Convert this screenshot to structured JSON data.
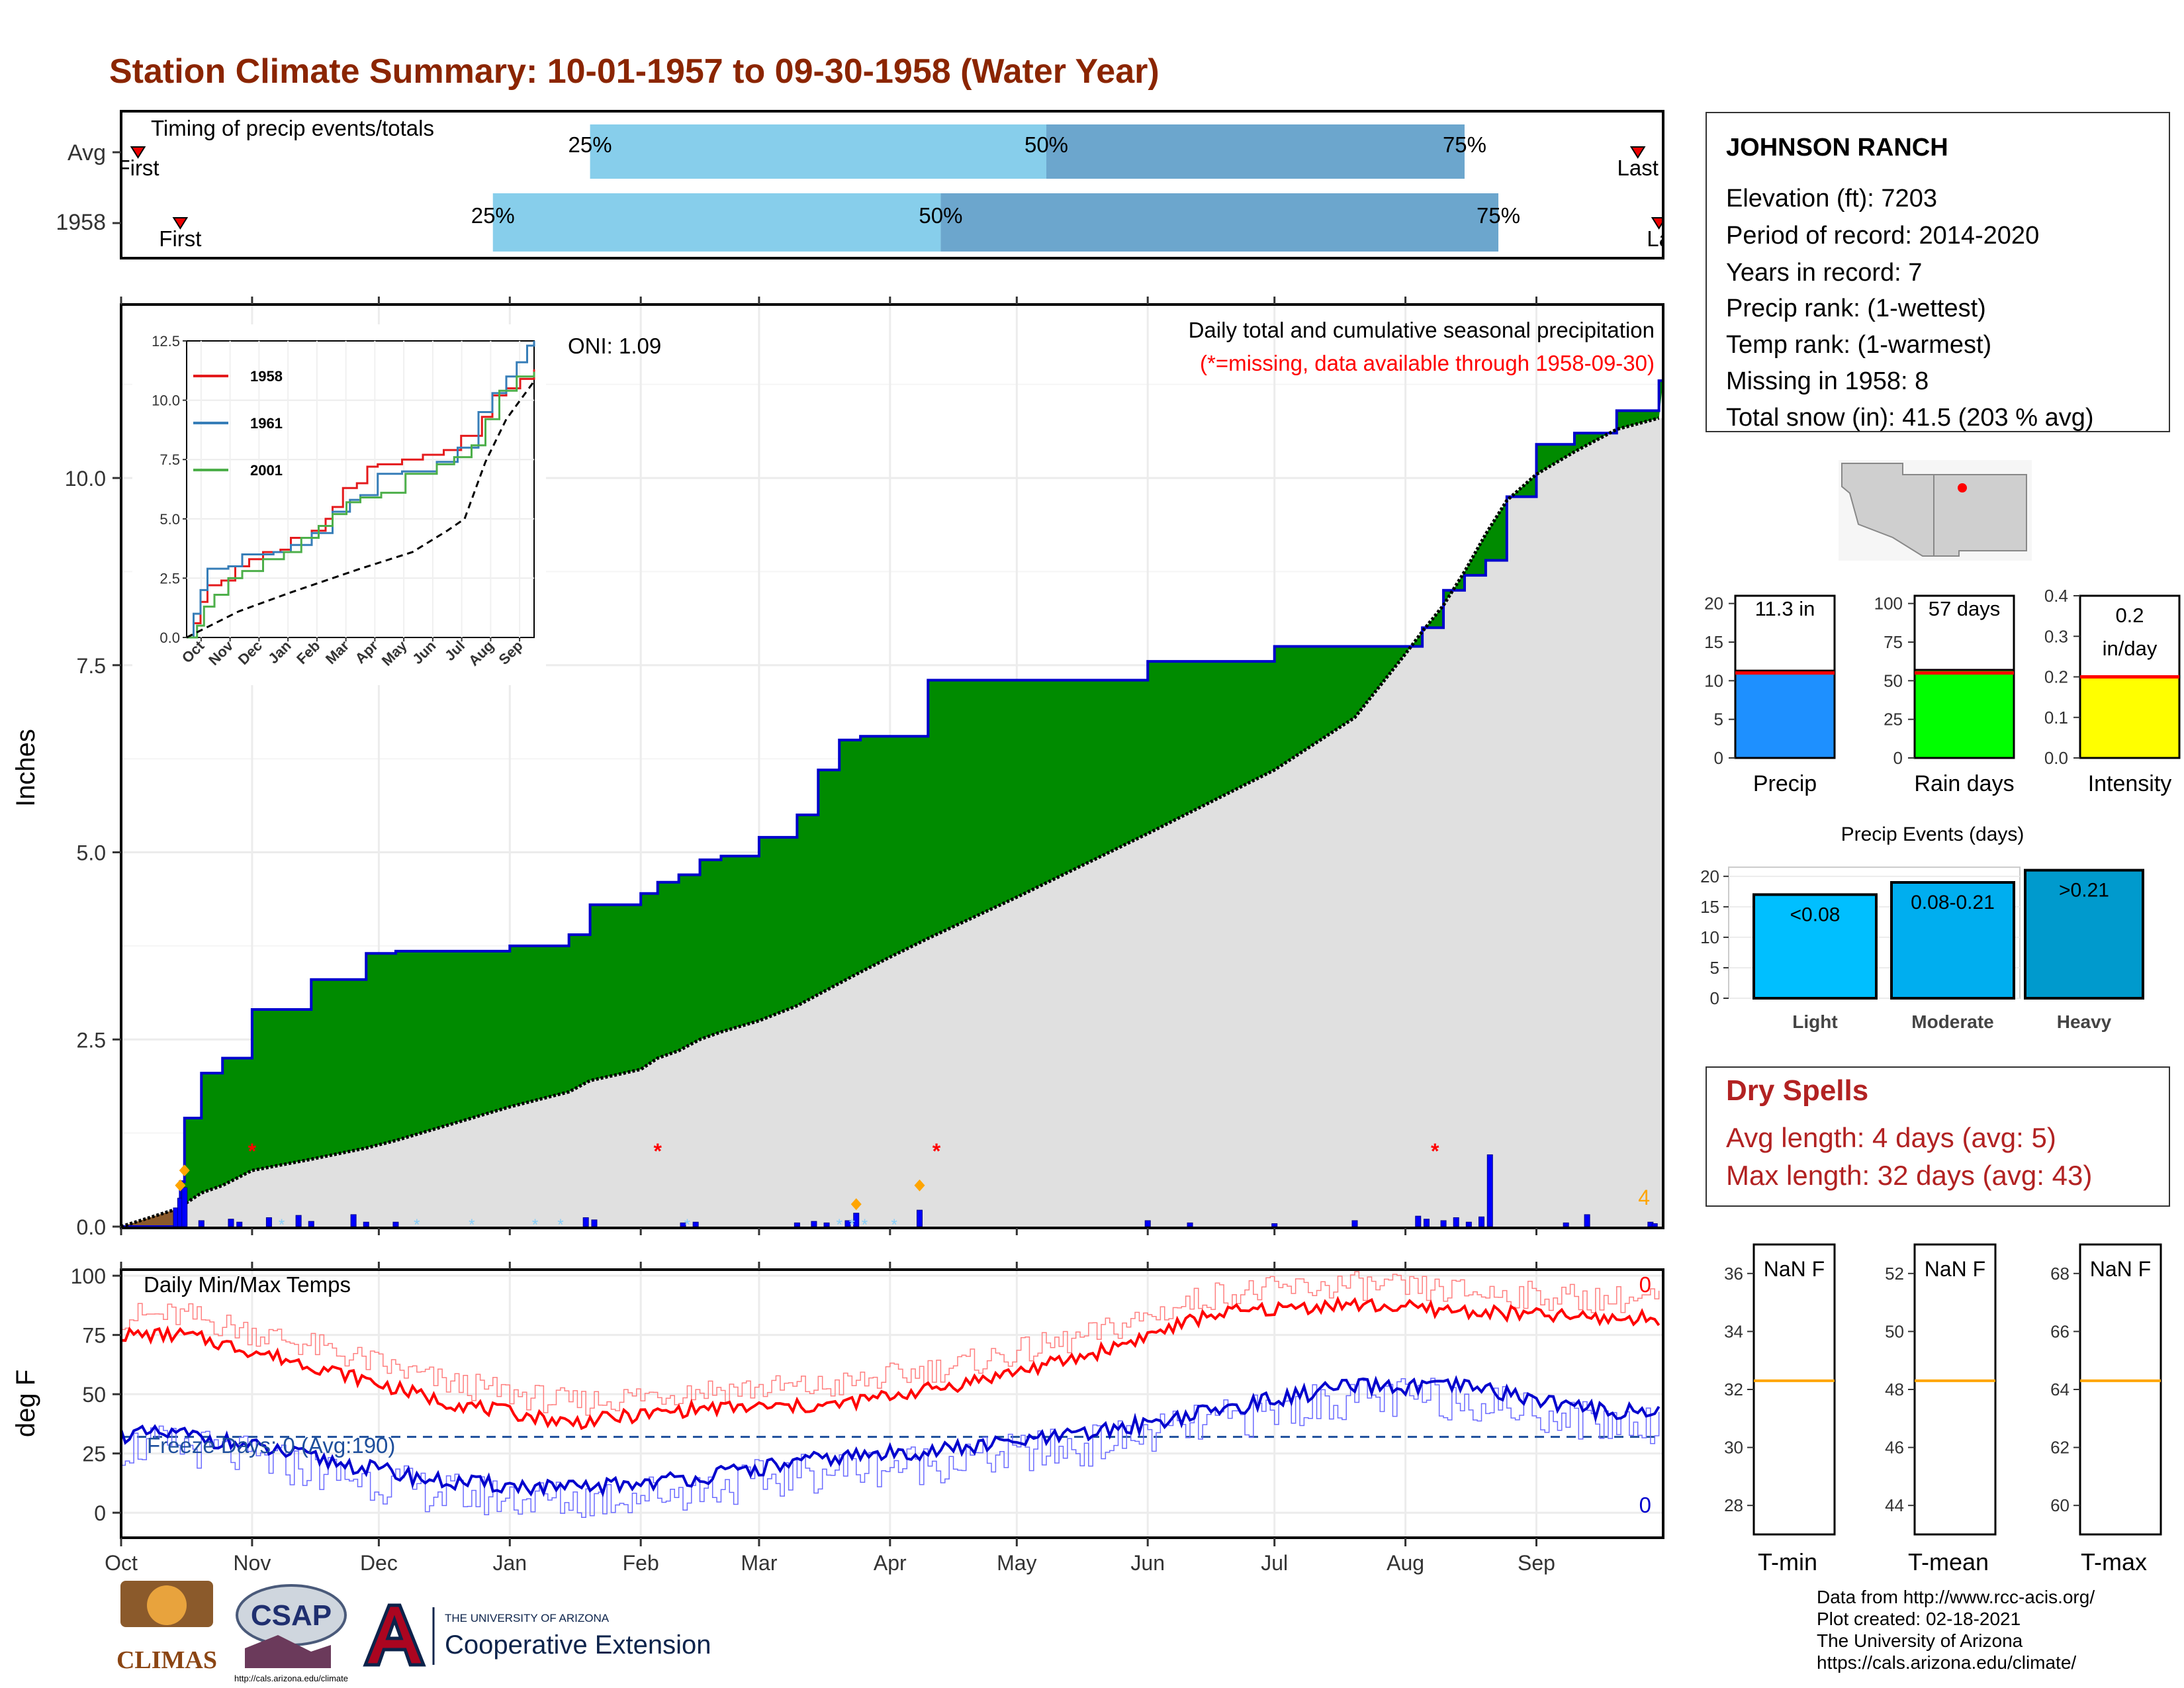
{
  "title": "Station Climate Summary: 10-01-1957 to 09-30-1958 (Water Year)",
  "colors": {
    "title": "#8B2500",
    "light_blue": "#87CEEB",
    "mid_blue": "#6CA6CD",
    "green": "#008B00",
    "gray_fill": "#E0E0E0",
    "precip_bar": "#1E90FF",
    "rain_bar": "#00FF00",
    "intensity_bar": "#FFFF00",
    "dry_spell_text": "#B22222",
    "tmax": "#FF0000",
    "tmin": "#0000CD",
    "orange": "#FFA500"
  },
  "timing": {
    "title": "Timing of precip events/totals",
    "rows": [
      {
        "label": "Avg",
        "first_label": "First",
        "last_label": "Last",
        "first_date": "1957-10-05",
        "last_date": "1958-09-25",
        "p25": "1958-01-20",
        "p50": "1958-05-08",
        "p75": "1958-08-15"
      },
      {
        "label": "1958",
        "first_label": "First",
        "last_label": "La",
        "first_date": "1957-10-15",
        "last_date": "1958-09-30",
        "p25": "1957-12-28",
        "p50": "1958-04-13",
        "p75": "1958-08-23"
      }
    ],
    "pct_labels": [
      "25%",
      "50%",
      "75%"
    ]
  },
  "station": {
    "name": "JOHNSON RANCH",
    "lines": [
      "Elevation (ft): 7203",
      "Period of record: 2014-2020",
      "Years in record: 7",
      "Precip rank:  (1-wettest)",
      "Temp rank:  (1-warmest)",
      "Missing in 1958: 8",
      "Total snow (in): 41.5 (203 % avg)"
    ]
  },
  "precip_chart": {
    "ylabel": "Inches",
    "oni": "ONI: 1.09",
    "note1": "Daily total and cumulative seasonal precipitation",
    "note2": "(*=missing, data available through 1958-09-30)",
    "missing_count": "4",
    "y_ticks": [
      "0.0",
      "2.5",
      "5.0",
      "7.5",
      "10.0"
    ],
    "ylim": [
      0,
      12.3
    ]
  },
  "inset": {
    "y_ticks": [
      "0.0",
      "2.5",
      "5.0",
      "7.5",
      "10.0",
      "12.5"
    ],
    "x_ticks": [
      "Oct",
      "Nov",
      "Dec",
      "Jan",
      "Feb",
      "Mar",
      "Apr",
      "May",
      "Jun",
      "Jul",
      "Aug",
      "Sep"
    ],
    "legend": [
      {
        "name": "1958",
        "color": "#E41A1C"
      },
      {
        "name": "1961",
        "color": "#377EB8"
      },
      {
        "name": "2001",
        "color": "#4DAF4A"
      }
    ]
  },
  "temp_chart": {
    "ylabel": "deg F",
    "title": "Daily Min/Max Temps",
    "freeze": "Freeze Days: 0 (Avg:190)",
    "tmax_count": "0",
    "tmin_count": "0",
    "y_ticks": [
      "0",
      "25",
      "50",
      "75",
      "100"
    ],
    "x_ticks": [
      "Oct",
      "Nov",
      "Dec",
      "Jan",
      "Feb",
      "Mar",
      "Apr",
      "May",
      "Jun",
      "Jul",
      "Aug",
      "Sep"
    ]
  },
  "bars3": [
    {
      "label": "Precip",
      "value_text": "11.3 in",
      "value": 11.3,
      "avg": 11.0,
      "ymax": 21,
      "ticks": [
        "0",
        "5",
        "10",
        "15",
        "20"
      ],
      "color": "#1E90FF"
    },
    {
      "label": "Rain days",
      "value_text": "57 days",
      "value": 57,
      "avg": 55,
      "ymax": 105,
      "ticks": [
        "0",
        "25",
        "50",
        "75",
        "100"
      ],
      "color": "#00FF00"
    },
    {
      "label": "Intensity",
      "value_text_1": "0.2",
      "value_text_2": "in/day",
      "value": 0.2,
      "avg": 0.2,
      "ymax": 0.4,
      "ticks": [
        "0.0",
        "0.1",
        "0.2",
        "0.3",
        "0.4"
      ],
      "color": "#FFFF00"
    }
  ],
  "events": {
    "title": "Precip Events (days)",
    "ticks": [
      "0",
      "5",
      "10",
      "15",
      "20"
    ],
    "ymax": 21.5,
    "bars": [
      {
        "label": "Light",
        "value_label": "<0.08",
        "value": 17,
        "color": "#00BFFF"
      },
      {
        "label": "Moderate",
        "value_label": "0.08-0.21",
        "value": 19,
        "color": "#00AEEF"
      },
      {
        "label": "Heavy",
        "value_label": ">0.21",
        "value": 21,
        "color": "#009ACD"
      }
    ]
  },
  "dry_spells": {
    "title": "Dry Spells",
    "line1": "Avg length: 4 days (avg: 5)",
    "line2": "Max length: 32 days (avg: 43)"
  },
  "temp_bars": [
    {
      "label": "T-min",
      "value_text": "NaN F",
      "ticks": [
        "28",
        "30",
        "32",
        "34",
        "36"
      ],
      "tmin": 27,
      "tmax": 37,
      "avg": 32.3
    },
    {
      "label": "T-mean",
      "value_text": "NaN F",
      "ticks": [
        "44",
        "46",
        "48",
        "50",
        "52"
      ],
      "tmin": 43,
      "tmax": 53,
      "avg": 48.3
    },
    {
      "label": "T-max",
      "value_text": "NaN F",
      "ticks": [
        "60",
        "62",
        "64",
        "66",
        "68"
      ],
      "tmin": 59,
      "tmax": 69,
      "avg": 64.3
    }
  ],
  "credits": [
    "Data from http://www.rcc-acis.org/",
    "Plot created: 02-18-2021",
    "The University of Arizona",
    "https://cals.arizona.edu/climate/"
  ],
  "logos": {
    "climas": "CLIMAS",
    "csap": "CSAP",
    "csap_url": "http://cals.arizona.edu/climate",
    "ua_top": "THE UNIVERSITY OF ARIZONA",
    "ua_bottom": "Cooperative Extension"
  },
  "chart_data": [
    {
      "type": "area",
      "title": "Daily total and cumulative seasonal precipitation",
      "ylabel": "Inches",
      "x": [
        "1957-10-01",
        "1957-10-15",
        "1957-10-16",
        "1957-10-20",
        "1957-10-25",
        "1957-11-01",
        "1957-11-15",
        "1957-11-28",
        "1957-12-05",
        "1958-01-01",
        "1958-01-15",
        "1958-01-20",
        "1958-02-01",
        "1958-02-05",
        "1958-02-10",
        "1958-02-15",
        "1958-02-20",
        "1958-03-01",
        "1958-03-10",
        "1958-03-15",
        "1958-03-20",
        "1958-03-25",
        "1958-04-01",
        "1958-04-10",
        "1958-05-01",
        "1958-06-01",
        "1958-07-01",
        "1958-07-20",
        "1958-08-01",
        "1958-08-05",
        "1958-08-10",
        "1958-08-15",
        "1958-08-20",
        "1958-08-25",
        "1958-09-01",
        "1958-09-10",
        "1958-09-20",
        "1958-09-30"
      ],
      "series": [
        {
          "name": "1958",
          "values": [
            0,
            0.6,
            1.45,
            2.05,
            2.25,
            2.9,
            3.3,
            3.65,
            3.68,
            3.75,
            3.9,
            4.3,
            4.45,
            4.6,
            4.7,
            4.9,
            4.95,
            5.2,
            5.5,
            6.1,
            6.5,
            6.55,
            6.55,
            7.3,
            7.3,
            7.55,
            7.75,
            7.75,
            7.75,
            8.0,
            8.5,
            8.7,
            8.9,
            9.75,
            10.45,
            10.6,
            10.9,
            11.3
          ]
        },
        {
          "name": "Average",
          "values": [
            0,
            0.25,
            0.3,
            0.45,
            0.55,
            0.75,
            0.9,
            1.05,
            1.15,
            1.6,
            1.8,
            1.95,
            2.1,
            2.25,
            2.35,
            2.5,
            2.6,
            2.75,
            2.95,
            3.1,
            3.25,
            3.4,
            3.6,
            3.85,
            4.4,
            5.25,
            6.1,
            6.8,
            7.65,
            7.95,
            8.3,
            8.75,
            9.25,
            9.7,
            10.05,
            10.35,
            10.65,
            10.8
          ]
        }
      ],
      "ylim": [
        0,
        12.3
      ]
    },
    {
      "type": "line",
      "title": "Daily Min/Max Temps",
      "ylabel": "deg F",
      "x": [
        "Oct",
        "Nov",
        "Dec",
        "Jan",
        "Feb",
        "Mar",
        "Apr",
        "May",
        "Jun",
        "Jul",
        "Aug",
        "Sep"
      ],
      "series": [
        {
          "name": "Tmax",
          "values": [
            75,
            62,
            47,
            38,
            44,
            45,
            54,
            66,
            84,
            88,
            85,
            82
          ]
        },
        {
          "name": "Tmin",
          "values": [
            33,
            23,
            13,
            10,
            15,
            23,
            27,
            33,
            43,
            53,
            53,
            43
          ]
        }
      ],
      "ylim": [
        -10,
        102
      ]
    }
  ]
}
